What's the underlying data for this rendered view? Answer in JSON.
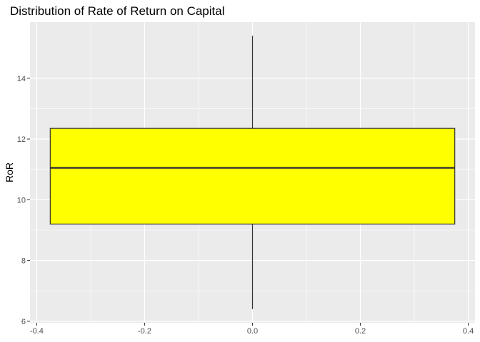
{
  "chart_data": {
    "type": "box",
    "title": "Distribution of Rate of Return on Capital",
    "xlabel": "",
    "ylabel": "RoR",
    "xlim": [
      -0.4125,
      0.4125
    ],
    "ylim": [
      5.95,
      15.85
    ],
    "x_ticks": [
      -0.4,
      -0.2,
      0.0,
      0.2,
      0.4
    ],
    "x_tick_labels": [
      "-0.4",
      "-0.2",
      "0.0",
      "0.2",
      "0.4"
    ],
    "y_ticks": [
      6,
      8,
      10,
      12,
      14
    ],
    "y_tick_labels": [
      "6",
      "8",
      "10",
      "12",
      "14"
    ],
    "grid": true,
    "box": {
      "x_center": 0.0,
      "x_min": -0.375,
      "x_max": 0.375,
      "whisker_low": 6.4,
      "q1": 9.2,
      "median": 11.05,
      "q3": 12.35,
      "whisker_high": 15.4,
      "fill": "#FFFF00",
      "stroke": "#333333"
    },
    "panel_background": "#EBEBEB",
    "grid_color": "#FFFFFF"
  }
}
